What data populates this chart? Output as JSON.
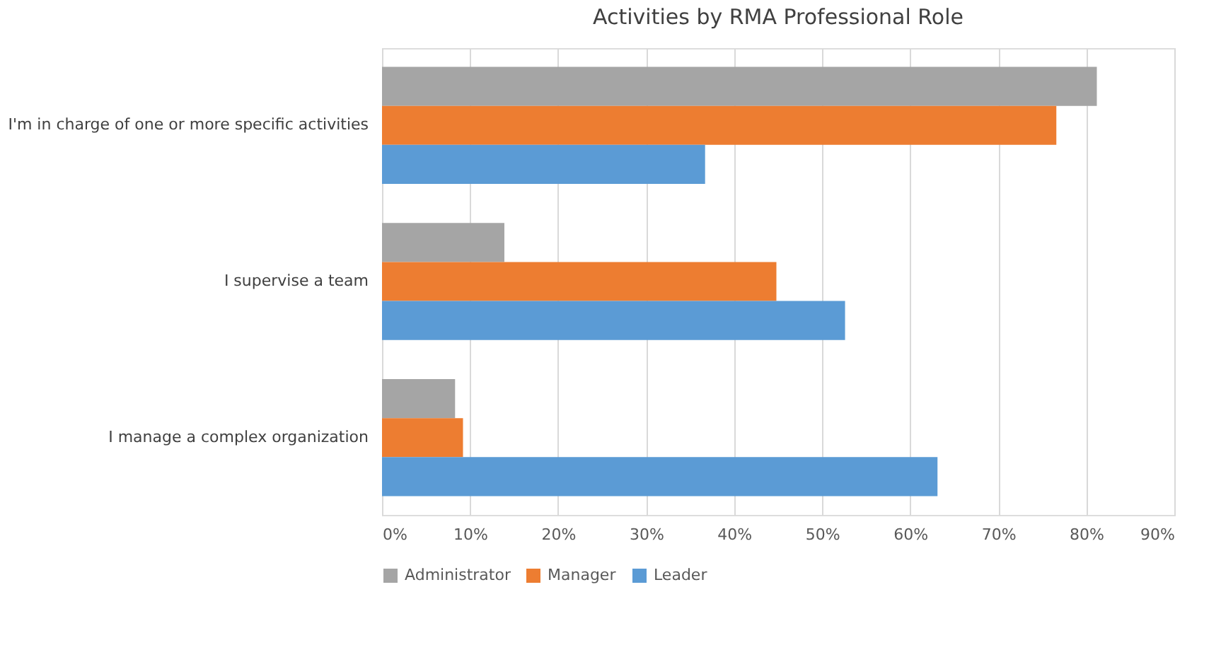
{
  "chart_data": {
    "type": "bar",
    "orientation": "horizontal",
    "title": "Activities by RMA Professional Role",
    "categories": [
      "I'm in charge of one or more specific activities",
      "I supervise a team",
      "I manage a complex organization"
    ],
    "series": [
      {
        "name": "Administrator",
        "color": "#a5a5a5",
        "values": [
          81.2,
          13.9,
          8.3
        ]
      },
      {
        "name": "Manager",
        "color": "#ed7d31",
        "values": [
          76.6,
          44.8,
          9.2
        ]
      },
      {
        "name": "Leader",
        "color": "#5b9bd5",
        "values": [
          36.7,
          52.6,
          63.1
        ]
      }
    ],
    "xlim": [
      0,
      90
    ],
    "xticks": [
      {
        "value": 0,
        "label": "0%"
      },
      {
        "value": 10,
        "label": "10%"
      },
      {
        "value": 20,
        "label": "20%"
      },
      {
        "value": 30,
        "label": "30%"
      },
      {
        "value": 40,
        "label": "40%"
      },
      {
        "value": 50,
        "label": "50%"
      },
      {
        "value": 60,
        "label": "60%"
      },
      {
        "value": 70,
        "label": "70%"
      },
      {
        "value": 80,
        "label": "80%"
      },
      {
        "value": 90,
        "label": "90%"
      }
    ],
    "grid": "x",
    "legend": "bottom"
  }
}
